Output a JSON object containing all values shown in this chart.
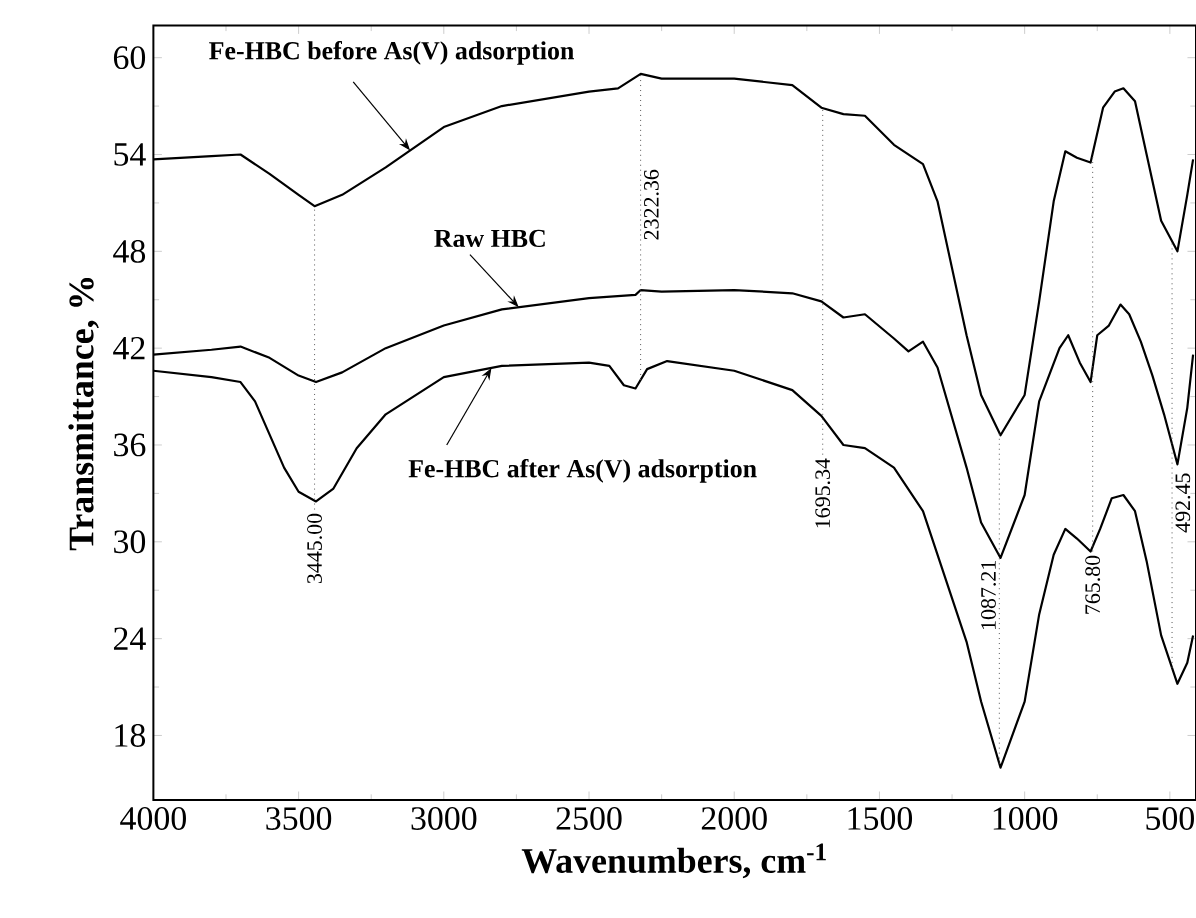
{
  "chart_data": {
    "type": "line",
    "xlabel": "Wavenumbers, cm$^{-1}$",
    "ylabel": "Transmittance, %",
    "xlim": [
      4000,
      410
    ],
    "ylim": [
      14,
      62
    ],
    "xticks": [
      4000,
      3500,
      3000,
      2500,
      2000,
      1500,
      1000,
      500
    ],
    "yticks": [
      18,
      24,
      30,
      36,
      42,
      48,
      54,
      60
    ],
    "line_style": "solid",
    "series": [
      {
        "name": "Fe-HBC before As(V) adsorption",
        "color": "#000000",
        "x": [
          4000,
          3800,
          3700,
          3600,
          3500,
          3445,
          3350,
          3200,
          3000,
          2800,
          2500,
          2400,
          2322,
          2250,
          2000,
          1800,
          1700,
          1624,
          1550,
          1450,
          1350,
          1300,
          1200,
          1150,
          1083,
          1000,
          950,
          900,
          860,
          820,
          773,
          730,
          690,
          660,
          620,
          580,
          530,
          474,
          440,
          420
        ],
        "values": [
          53.7,
          53.9,
          54.0,
          52.8,
          51.5,
          50.8,
          51.5,
          53.2,
          55.7,
          57.0,
          57.9,
          58.1,
          59.0,
          58.7,
          58.7,
          58.3,
          56.9,
          56.5,
          56.4,
          54.6,
          53.4,
          51.1,
          42.8,
          39.1,
          36.6,
          39.1,
          44.9,
          51.1,
          54.2,
          53.8,
          53.5,
          56.9,
          57.9,
          58.1,
          57.3,
          54.0,
          49.9,
          48.0,
          51.5,
          53.7
        ]
      },
      {
        "name": "Raw HBC",
        "color": "#000000",
        "x": [
          4000,
          3800,
          3700,
          3600,
          3500,
          3440,
          3350,
          3200,
          3000,
          2800,
          2500,
          2340,
          2322,
          2250,
          2000,
          1800,
          1700,
          1624,
          1550,
          1450,
          1400,
          1350,
          1300,
          1200,
          1150,
          1083,
          1000,
          950,
          880,
          850,
          810,
          773,
          750,
          710,
          670,
          640,
          600,
          560,
          520,
          474,
          440,
          420
        ],
        "values": [
          41.6,
          41.9,
          42.1,
          41.4,
          40.3,
          39.9,
          40.5,
          42.0,
          43.4,
          44.4,
          45.1,
          45.3,
          45.6,
          45.5,
          45.6,
          45.4,
          44.9,
          43.9,
          44.1,
          42.6,
          41.8,
          42.4,
          40.8,
          34.6,
          31.2,
          29.0,
          32.9,
          38.7,
          42.0,
          42.8,
          41.1,
          39.9,
          42.8,
          43.4,
          44.7,
          44.1,
          42.4,
          40.3,
          37.9,
          34.8,
          38.3,
          41.6
        ]
      },
      {
        "name": "Fe-HBC after As(V) adsorption",
        "color": "#000000",
        "x": [
          4000,
          3800,
          3700,
          3650,
          3550,
          3500,
          3440,
          3380,
          3300,
          3200,
          3000,
          2800,
          2500,
          2430,
          2380,
          2340,
          2300,
          2231,
          2000,
          1800,
          1700,
          1624,
          1550,
          1450,
          1350,
          1300,
          1200,
          1150,
          1083,
          1000,
          950,
          900,
          860,
          820,
          773,
          740,
          700,
          660,
          620,
          580,
          530,
          474,
          440,
          420
        ],
        "values": [
          40.6,
          40.2,
          39.9,
          38.7,
          34.6,
          33.1,
          32.5,
          33.3,
          35.8,
          37.9,
          40.2,
          40.9,
          41.1,
          40.9,
          39.7,
          39.5,
          40.7,
          41.2,
          40.6,
          39.4,
          37.8,
          36.0,
          35.8,
          34.6,
          31.9,
          29.2,
          23.8,
          20.1,
          16.0,
          20.1,
          25.5,
          29.2,
          30.8,
          30.2,
          29.4,
          30.8,
          32.7,
          32.9,
          31.9,
          28.8,
          24.2,
          21.2,
          22.5,
          24.2
        ]
      }
    ],
    "ref_lines": [
      {
        "axis": "x",
        "value": 3445.0,
        "label": "3445.00",
        "color": "#555555",
        "line_style": "dotted"
      },
      {
        "axis": "x",
        "value": 2322.36,
        "label": "2322.36",
        "color": "#555555",
        "line_style": "dotted"
      },
      {
        "axis": "x",
        "value": 1695.34,
        "label": "1695.34",
        "color": "#555555",
        "line_style": "dotted"
      },
      {
        "axis": "x",
        "value": 1087.21,
        "label": "1087.21",
        "color": "#555555",
        "line_style": "dotted"
      },
      {
        "axis": "x",
        "value": 765.8,
        "label": "765.80",
        "color": "#555555",
        "line_style": "dotted"
      },
      {
        "axis": "x",
        "value": 492.45,
        "label": "492.45",
        "color": "#555555",
        "line_style": "dotted"
      }
    ]
  }
}
